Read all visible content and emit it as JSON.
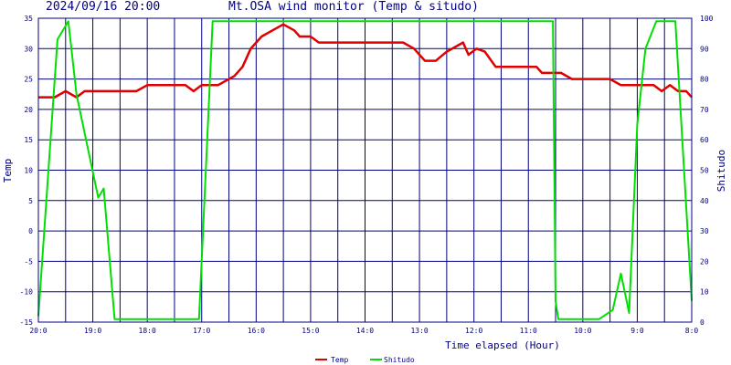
{
  "header": {
    "timestamp": "2024/09/16 20:00",
    "title": "Mt.OSA wind monitor (Temp & situdo)"
  },
  "colors": {
    "frame": "#000080",
    "grid": "#000080",
    "temp": "#e00000",
    "shitudo": "#00e000",
    "text": "#000080"
  },
  "chart_data": {
    "type": "line",
    "xlabel": "Time elapsed (Hour)",
    "ylabel_left": "Temp",
    "ylabel_right": "Shitudo",
    "x_range": [
      20,
      8
    ],
    "x_ticks": [
      {
        "value": 20,
        "label": "20:0"
      },
      {
        "value": 19,
        "label": "19:0"
      },
      {
        "value": 18,
        "label": "18:0"
      },
      {
        "value": 17,
        "label": "17:0"
      },
      {
        "value": 16,
        "label": "16:0"
      },
      {
        "value": 15,
        "label": "15:0"
      },
      {
        "value": 14,
        "label": "14:0"
      },
      {
        "value": 13,
        "label": "13:0"
      },
      {
        "value": 12,
        "label": "12:0"
      },
      {
        "value": 11,
        "label": "11:0"
      },
      {
        "value": 10,
        "label": "10:0"
      },
      {
        "value": 9,
        "label": "9:0"
      },
      {
        "value": 8,
        "label": "8:0"
      }
    ],
    "left_axis": {
      "range": [
        -15,
        35
      ],
      "ticks": [
        35,
        30,
        25,
        20,
        15,
        10,
        5,
        0,
        -5,
        -10,
        -15
      ]
    },
    "right_axis": {
      "range": [
        0,
        100
      ],
      "ticks": [
        100,
        90,
        80,
        70,
        60,
        50,
        40,
        30,
        20,
        10,
        0
      ]
    },
    "grid": true,
    "legend_position": "bottom-center",
    "series": [
      {
        "name": "Temp",
        "axis": "left",
        "points": [
          [
            20.0,
            22.0
          ],
          [
            19.7,
            22.0
          ],
          [
            19.5,
            23.0
          ],
          [
            19.3,
            22.0
          ],
          [
            19.15,
            23.0
          ],
          [
            18.9,
            23.0
          ],
          [
            18.5,
            23.0
          ],
          [
            18.2,
            23.0
          ],
          [
            18.0,
            24.0
          ],
          [
            17.7,
            24.0
          ],
          [
            17.3,
            24.0
          ],
          [
            17.15,
            23.0
          ],
          [
            17.0,
            24.0
          ],
          [
            16.7,
            24.0
          ],
          [
            16.4,
            25.5
          ],
          [
            16.25,
            27.0
          ],
          [
            16.1,
            30.0
          ],
          [
            15.9,
            32.0
          ],
          [
            15.7,
            33.0
          ],
          [
            15.5,
            34.0
          ],
          [
            15.3,
            33.0
          ],
          [
            15.2,
            32.0
          ],
          [
            15.0,
            32.0
          ],
          [
            14.85,
            31.0
          ],
          [
            14.5,
            31.0
          ],
          [
            14.0,
            31.0
          ],
          [
            13.5,
            31.0
          ],
          [
            13.3,
            31.0
          ],
          [
            13.1,
            30.0
          ],
          [
            12.9,
            28.0
          ],
          [
            12.7,
            28.0
          ],
          [
            12.5,
            29.5
          ],
          [
            12.2,
            31.0
          ],
          [
            12.1,
            29.0
          ],
          [
            11.95,
            30.0
          ],
          [
            11.8,
            29.5
          ],
          [
            11.6,
            27.0
          ],
          [
            11.2,
            27.0
          ],
          [
            10.85,
            27.0
          ],
          [
            10.75,
            26.0
          ],
          [
            10.4,
            26.0
          ],
          [
            10.2,
            25.0
          ],
          [
            9.8,
            25.0
          ],
          [
            9.5,
            25.0
          ],
          [
            9.3,
            24.0
          ],
          [
            9.0,
            24.0
          ],
          [
            8.7,
            24.0
          ],
          [
            8.55,
            23.0
          ],
          [
            8.4,
            24.0
          ],
          [
            8.25,
            23.0
          ],
          [
            8.1,
            23.0
          ],
          [
            8.0,
            22.0
          ]
        ]
      },
      {
        "name": "Shitudo",
        "axis": "right",
        "points": [
          [
            20.0,
            2
          ],
          [
            19.65,
            93
          ],
          [
            19.45,
            99
          ],
          [
            19.3,
            75
          ],
          [
            18.9,
            41
          ],
          [
            18.8,
            44
          ],
          [
            18.6,
            1
          ],
          [
            17.5,
            1
          ],
          [
            17.05,
            1
          ],
          [
            16.8,
            99
          ],
          [
            16.5,
            99
          ],
          [
            15.0,
            99
          ],
          [
            13.0,
            99
          ],
          [
            11.0,
            99
          ],
          [
            10.55,
            99
          ],
          [
            10.5,
            7
          ],
          [
            10.45,
            1
          ],
          [
            9.7,
            1
          ],
          [
            9.45,
            4
          ],
          [
            9.3,
            16
          ],
          [
            9.15,
            3
          ],
          [
            9.0,
            65
          ],
          [
            8.85,
            90
          ],
          [
            8.65,
            99
          ],
          [
            8.3,
            99
          ],
          [
            8.0,
            7
          ]
        ]
      }
    ]
  }
}
